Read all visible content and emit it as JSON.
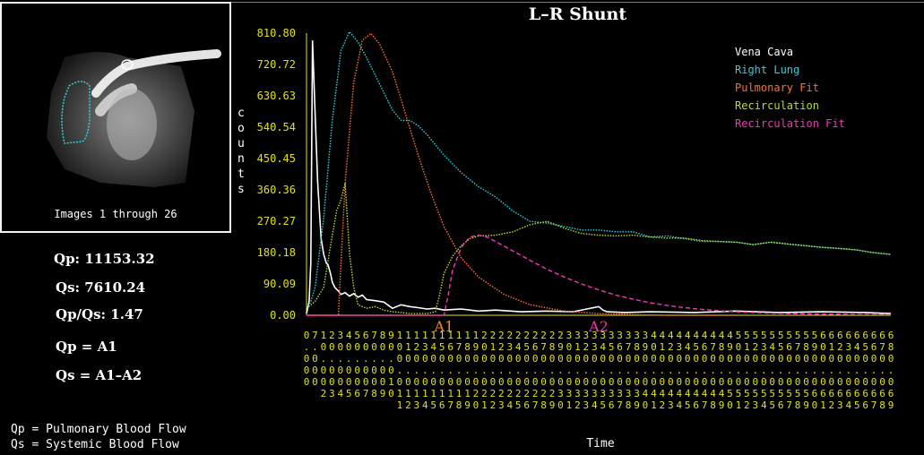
{
  "thumbnail": {
    "caption": "Images 1 through 26"
  },
  "results": {
    "qp": "Qp: 11153.32",
    "qs": "Qs: 7610.24",
    "ratio": "Qp/Qs: 1.47",
    "qp_def": "Qp = A1",
    "qs_def": "Qs = A1–A2"
  },
  "footnotes": {
    "qp": "Qp = Pulmonary Blood Flow",
    "qs": "Qs = Systemic Blood Flow"
  },
  "chart_data": {
    "type": "line",
    "title": "L–R Shunt",
    "xlabel": "Time",
    "ylabel": "counts",
    "ylim": [
      0,
      810.8
    ],
    "yticks": [
      "810.80",
      "720.72",
      "630.63",
      "540.54",
      "450.45",
      "360.36",
      "270.27",
      "180.18",
      "90.09",
      "0.00"
    ],
    "xticks": [
      "0.000",
      "7.000",
      "10.002",
      "20.003",
      "30.004",
      "40.005",
      "50.006",
      "60.007",
      "70.008",
      "80.009",
      "90.010",
      "100.011",
      "110.012",
      "120.013",
      "130.014",
      "140.015",
      "150.016",
      "160.017",
      "170.018",
      "180.019",
      "190.020",
      "200.021",
      "210.022",
      "220.023",
      "230.024",
      "240.025",
      "250.026",
      "260.027",
      "270.028",
      "280.029",
      "290.030",
      "300.031",
      "310.032",
      "320.033",
      "330.034",
      "340.035",
      "350.036",
      "360.037",
      "370.038",
      "380.039",
      "390.040",
      "400.041",
      "410.042",
      "420.043",
      "430.044",
      "440.045",
      "450.046",
      "460.047",
      "470.048",
      "480.049",
      "490.050",
      "500.051",
      "510.052",
      "520.053",
      "530.054",
      "540.055",
      "550.056",
      "560.057",
      "570.058",
      "580.059",
      "590.060",
      "600.061",
      "610.062",
      "620.063",
      "630.064",
      "640.065",
      "650.066",
      "660.067",
      "670.068",
      "680.069"
    ],
    "annotations": [
      {
        "text": "A1",
        "x": 160,
        "color": "#ff8030"
      },
      {
        "text": "A2",
        "x": 340,
        "color": "#ff30c0"
      }
    ],
    "legend_position": "top-right",
    "series": [
      {
        "name": "Vena Cava",
        "color": "#ffffff",
        "style": "solid",
        "x": [
          0,
          3,
          5,
          7,
          10,
          13,
          17,
          20,
          23,
          25,
          28,
          30,
          33,
          37,
          40,
          45,
          50,
          55,
          60,
          65,
          70,
          80,
          90,
          100,
          110,
          120,
          130,
          140,
          150,
          160,
          180,
          200,
          220,
          250,
          280,
          310,
          340,
          345,
          350,
          370,
          400,
          450,
          500,
          550,
          600,
          650,
          680
        ],
        "y": [
          5,
          40,
          150,
          790,
          580,
          380,
          220,
          175,
          150,
          145,
          120,
          95,
          80,
          70,
          60,
          65,
          55,
          62,
          52,
          58,
          45,
          42,
          38,
          20,
          30,
          25,
          22,
          18,
          20,
          15,
          18,
          12,
          15,
          10,
          12,
          10,
          25,
          15,
          10,
          8,
          10,
          8,
          12,
          8,
          10,
          8,
          5
        ]
      },
      {
        "name": "Right Lung",
        "color": "#30d0e0",
        "style": "dotted",
        "x": [
          0,
          5,
          10,
          20,
          30,
          40,
          50,
          60,
          70,
          80,
          90,
          100,
          110,
          120,
          130,
          140,
          150,
          160,
          180,
          200,
          220,
          240,
          260,
          280,
          300,
          320,
          340,
          360,
          380,
          400,
          420,
          440,
          460,
          480,
          500,
          520,
          540,
          560,
          580,
          600,
          620,
          640,
          660,
          680
        ],
        "y": [
          20,
          40,
          80,
          280,
          560,
          760,
          815,
          785,
          740,
          690,
          640,
          590,
          560,
          560,
          545,
          520,
          490,
          460,
          410,
          370,
          340,
          300,
          270,
          265,
          255,
          245,
          245,
          240,
          240,
          225,
          228,
          220,
          212,
          212,
          210,
          203,
          210,
          205,
          200,
          195,
          192,
          188,
          180,
          175
        ]
      },
      {
        "name": "Pulmonary Fit",
        "color": "#ff7030",
        "style": "dotted",
        "x": [
          0,
          37,
          45,
          55,
          65,
          75,
          85,
          100,
          115,
          130,
          145,
          160,
          180,
          200,
          230,
          260,
          300,
          340,
          380,
          420,
          460,
          500
        ],
        "y": [
          0,
          0,
          380,
          670,
          790,
          810,
          780,
          700,
          580,
          460,
          350,
          255,
          165,
          110,
          60,
          30,
          12,
          5,
          2,
          0,
          0,
          0
        ]
      },
      {
        "name": "Recirculation",
        "color": "#b0e030",
        "style": "dotted",
        "x": [
          0,
          10,
          20,
          28,
          35,
          40,
          45,
          50,
          55,
          60,
          70,
          80,
          90,
          100,
          110,
          120,
          130,
          140,
          150,
          155,
          160,
          170,
          180,
          190,
          200,
          220,
          240,
          260,
          280,
          300,
          320,
          340,
          360,
          380,
          400,
          420,
          440,
          460,
          480,
          500,
          520,
          540,
          560,
          580,
          600,
          620,
          640,
          660,
          680
        ],
        "y": [
          20,
          40,
          80,
          200,
          300,
          330,
          380,
          180,
          80,
          30,
          20,
          25,
          15,
          10,
          8,
          5,
          5,
          5,
          10,
          60,
          120,
          170,
          200,
          220,
          228,
          230,
          240,
          260,
          270,
          250,
          235,
          230,
          228,
          230,
          225,
          222,
          222,
          215,
          212,
          210,
          203,
          210,
          205,
          200,
          195,
          192,
          188,
          180,
          175
        ]
      },
      {
        "name": "Recirculation Fit",
        "color": "#ff30c0",
        "style": "dashed",
        "x": [
          0,
          150,
          160,
          165,
          170,
          180,
          190,
          200,
          210,
          220,
          240,
          260,
          280,
          300,
          320,
          340,
          360,
          380,
          400,
          420,
          440,
          460,
          480,
          500,
          520,
          540,
          560,
          580,
          600,
          620,
          640,
          660,
          680
        ],
        "y": [
          0,
          0,
          0,
          60,
          130,
          195,
          225,
          230,
          225,
          212,
          185,
          158,
          132,
          110,
          90,
          73,
          58,
          46,
          36,
          28,
          22,
          17,
          13,
          10,
          8,
          6,
          5,
          4,
          3,
          3,
          2,
          2,
          2
        ]
      }
    ]
  }
}
